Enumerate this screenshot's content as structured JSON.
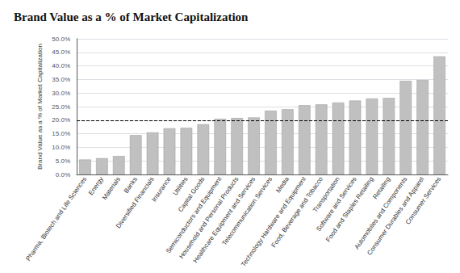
{
  "chart_data": {
    "type": "bar",
    "title": "Brand Value as a % of Market Capitalization",
    "ylabel": "Brand Value as a % of Market Capitalization",
    "categories": [
      "Pharma, Biotech and Life Sciences",
      "Energy",
      "Materials",
      "Banks",
      "Diversified Financials",
      "Insurance",
      "Utilities",
      "Capital Goods",
      "Semiconductors and Equipment",
      "Household and Personal Products",
      "Healthcare Equipment and Services",
      "Telecommunication Services",
      "Media",
      "Technology Hardware and Equipment",
      "Food, Beverage and Tobacco",
      "Transportation",
      "Software and Services",
      "Food and Staples Retailing",
      "Retailing",
      "Automobiles and Components",
      "Consumer Durables and Apparel",
      "Consumer Services"
    ],
    "values": [
      5.5,
      6.0,
      6.8,
      14.5,
      15.5,
      17.0,
      17.2,
      18.5,
      20.5,
      20.8,
      21.0,
      23.5,
      24.0,
      25.5,
      25.8,
      26.5,
      27.2,
      28.0,
      28.2,
      34.5,
      34.8,
      43.5
    ],
    "color": "#c0c0c0",
    "hline": 20.0,
    "ylim": [
      0,
      50
    ],
    "yticks": [
      {
        "value": 0,
        "label": "0.0%"
      },
      {
        "value": 5,
        "label": "5.0%"
      },
      {
        "value": 10,
        "label": "10.0%"
      },
      {
        "value": 15,
        "label": "15.0%"
      },
      {
        "value": 20,
        "label": "20.0%"
      },
      {
        "value": 25,
        "label": "25.0%"
      },
      {
        "value": 30,
        "label": "30.0%"
      },
      {
        "value": 35,
        "label": "35.0%"
      },
      {
        "value": 40,
        "label": "40.0%"
      },
      {
        "value": 45,
        "label": "45.0%"
      },
      {
        "value": 50,
        "label": "50.0%"
      }
    ],
    "grid": true
  }
}
